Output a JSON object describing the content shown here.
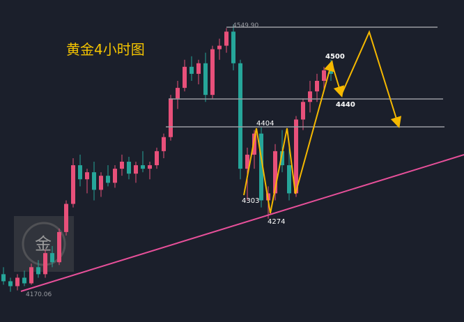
{
  "chart_data": {
    "type": "candlestick",
    "title": "黄金4小时图",
    "watermark": "金",
    "up_color": "#e8507a",
    "down_color": "#26a69a",
    "ylim": [
      4127,
      4585
    ],
    "categories": [
      null,
      null,
      null,
      null,
      null,
      null,
      null,
      null,
      null,
      null,
      null,
      null,
      null,
      null,
      null,
      null,
      null,
      null,
      null,
      null,
      null,
      null,
      null,
      null,
      null,
      null,
      null,
      null,
      null,
      null,
      null,
      null,
      null,
      null,
      null,
      null,
      null,
      null,
      null,
      null,
      null,
      null,
      null,
      null,
      null,
      null,
      null,
      null
    ],
    "ohlc": [
      [
        4195,
        4205,
        4180,
        4185
      ],
      [
        4185,
        4190,
        4170,
        4178
      ],
      [
        4178,
        4195,
        4172,
        4190
      ],
      [
        4190,
        4200,
        4178,
        4182
      ],
      [
        4182,
        4210,
        4180,
        4205
      ],
      [
        4205,
        4215,
        4190,
        4195
      ],
      [
        4195,
        4230,
        4190,
        4225
      ],
      [
        4225,
        4235,
        4205,
        4212
      ],
      [
        4212,
        4260,
        4208,
        4255
      ],
      [
        4255,
        4300,
        4250,
        4295
      ],
      [
        4295,
        4360,
        4290,
        4350
      ],
      [
        4350,
        4365,
        4320,
        4330
      ],
      [
        4330,
        4345,
        4310,
        4340
      ],
      [
        4340,
        4355,
        4300,
        4315
      ],
      [
        4315,
        4340,
        4305,
        4335
      ],
      [
        4335,
        4350,
        4320,
        4325
      ],
      [
        4325,
        4350,
        4318,
        4345
      ],
      [
        4345,
        4365,
        4335,
        4355
      ],
      [
        4355,
        4362,
        4330,
        4338
      ],
      [
        4338,
        4355,
        4325,
        4350
      ],
      [
        4350,
        4370,
        4340,
        4345
      ],
      [
        4345,
        4355,
        4330,
        4350
      ],
      [
        4350,
        4375,
        4345,
        4370
      ],
      [
        4370,
        4395,
        4360,
        4390
      ],
      [
        4390,
        4450,
        4385,
        4445
      ],
      [
        4445,
        4470,
        4430,
        4460
      ],
      [
        4460,
        4500,
        4455,
        4490
      ],
      [
        4490,
        4505,
        4470,
        4480
      ],
      [
        4480,
        4500,
        4465,
        4495
      ],
      [
        4495,
        4510,
        4440,
        4450
      ],
      [
        4450,
        4520,
        4445,
        4515
      ],
      [
        4515,
        4530,
        4500,
        4520
      ],
      [
        4520,
        4545,
        4510,
        4540
      ],
      [
        4540,
        4550,
        4485,
        4495
      ],
      [
        4495,
        4500,
        4330,
        4345
      ],
      [
        4345,
        4375,
        4300,
        4365
      ],
      [
        4365,
        4400,
        4345,
        4395
      ],
      [
        4395,
        4404,
        4290,
        4300
      ],
      [
        4300,
        4320,
        4274,
        4310
      ],
      [
        4310,
        4380,
        4300,
        4370
      ],
      [
        4370,
        4400,
        4340,
        4350
      ],
      [
        4350,
        4380,
        4300,
        4310
      ],
      [
        4310,
        4420,
        4305,
        4415
      ],
      [
        4415,
        4445,
        4400,
        4440
      ],
      [
        4440,
        4470,
        4425,
        4455
      ],
      [
        4455,
        4480,
        4440,
        4470
      ],
      [
        4470,
        4490,
        4455,
        4485
      ],
      [
        4485,
        4500,
        4470,
        4480
      ]
    ],
    "annotations": [
      "4549.90",
      "4500",
      "4440",
      "4404",
      "4303",
      "4274",
      "4170.06"
    ]
  }
}
